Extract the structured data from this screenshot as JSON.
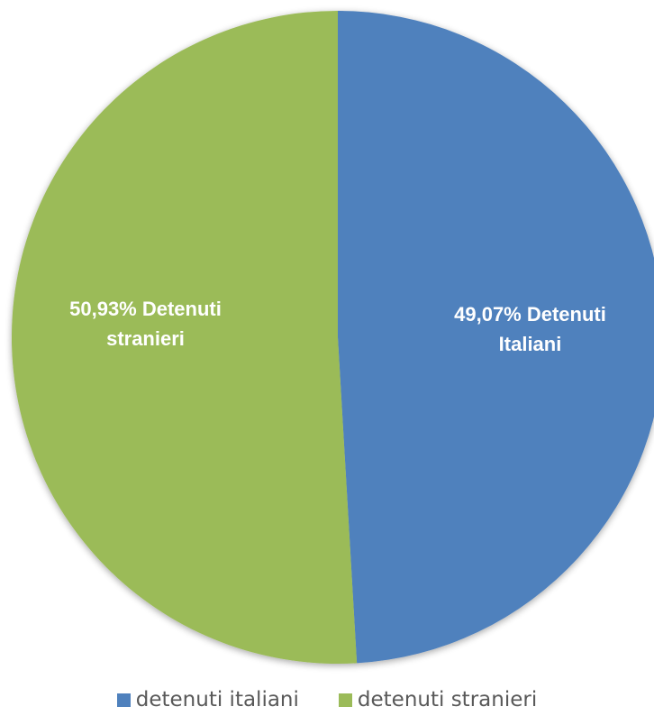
{
  "chart_data": {
    "type": "pie",
    "title": "",
    "series": [
      {
        "values": [
          49.07,
          50.93
        ]
      }
    ],
    "categories": [
      "detenuti italiani",
      "detenuti stranieri"
    ],
    "slices": [
      {
        "name": "detenuti italiani",
        "value": 49.07,
        "color": "#4f81bd",
        "label_lines": [
          "49,07% Detenuti",
          "Italiani"
        ]
      },
      {
        "name": "detenuti stranieri",
        "value": 50.93,
        "color": "#9bbb59",
        "label_lines": [
          "50,93% Detenuti",
          "stranieri"
        ]
      }
    ],
    "legend": {
      "position": "bottom",
      "items": [
        {
          "label": "detenuti italiani",
          "color": "#4f81bd"
        },
        {
          "label": "detenuti stranieri",
          "color": "#9bbb59"
        }
      ]
    },
    "start_angle": "12 o'clock",
    "direction": "clockwise"
  }
}
